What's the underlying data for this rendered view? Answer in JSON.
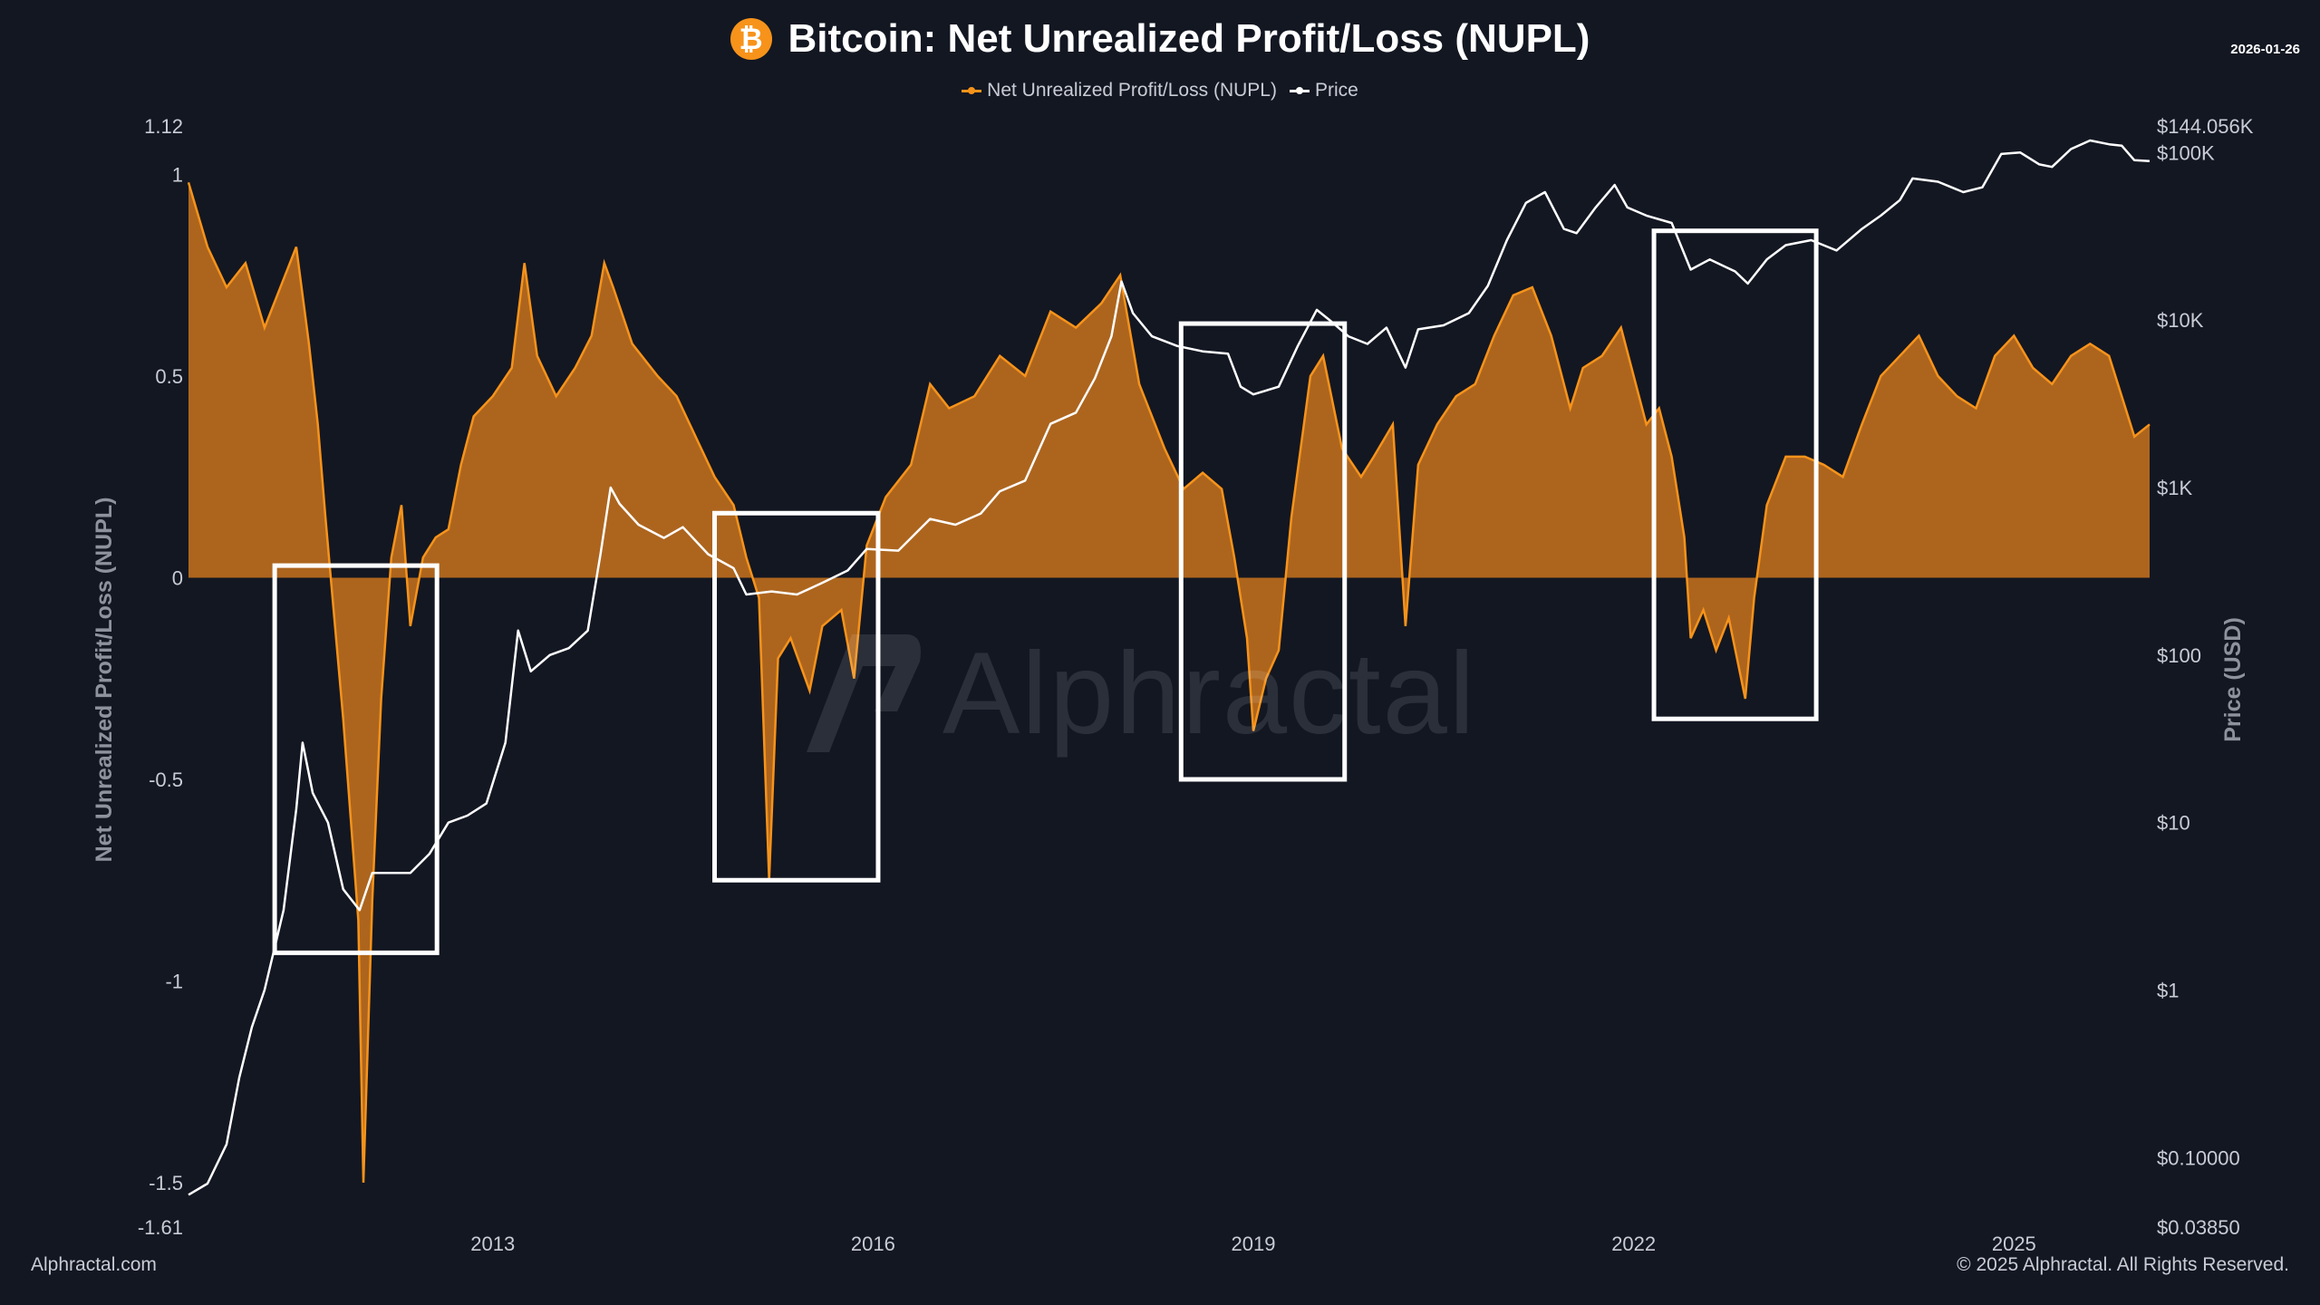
{
  "header": {
    "title": "Bitcoin: Net Unrealized Profit/Loss (NUPL)",
    "date": "2026-01-26",
    "icon": "bitcoin-icon"
  },
  "legend": [
    {
      "label": "Net Unrealized Profit/Loss (NUPL)",
      "color": "#f7931a"
    },
    {
      "label": "Price",
      "color": "#ffffff"
    }
  ],
  "footer": {
    "left": "Alphractal.com",
    "right": "© 2025 Alphractal. All Rights Reserved."
  },
  "watermark": "Alphractal",
  "chart_data": {
    "type": "area",
    "title": "Bitcoin: Net Unrealized Profit/Loss (NUPL)",
    "y_left_label": "Net Unrealized Profit/Loss (NUPL)",
    "y_right_label": "Price (USD)",
    "y_left_range": [
      -1.61,
      1.12
    ],
    "y_left_ticks": [
      "1.12",
      "1",
      "0.5",
      "0",
      "-0.5",
      "-1",
      "-1.5",
      "-1.61"
    ],
    "y_left_tick_values": [
      1.12,
      1,
      0.5,
      0,
      -0.5,
      -1,
      -1.5,
      -1.61
    ],
    "y_right_range_log": [
      0.0385,
      144056
    ],
    "y_right_ticks": [
      "$144.056K",
      "$100K",
      "$10K",
      "$1K",
      "$100",
      "$10",
      "$1",
      "$0.10000",
      "$0.03850"
    ],
    "y_right_tick_values": [
      144056,
      100000,
      10000,
      1000,
      100,
      10,
      1,
      0.1,
      0.0385
    ],
    "x_range": [
      2010.6,
      2026.07
    ],
    "x_ticks": [
      "2013",
      "2016",
      "2019",
      "2022",
      "2025"
    ],
    "x_tick_values": [
      2013,
      2016,
      2019,
      2022,
      2025
    ],
    "series": [
      {
        "name": "Net Unrealized Profit/Loss (NUPL)",
        "color": "#f7931a",
        "points": [
          [
            2010.6,
            0.98
          ],
          [
            2010.75,
            0.82
          ],
          [
            2010.9,
            0.72
          ],
          [
            2011.05,
            0.78
          ],
          [
            2011.2,
            0.62
          ],
          [
            2011.35,
            0.74
          ],
          [
            2011.45,
            0.82
          ],
          [
            2011.55,
            0.58
          ],
          [
            2011.62,
            0.38
          ],
          [
            2011.68,
            0.15
          ],
          [
            2011.75,
            -0.1
          ],
          [
            2011.82,
            -0.35
          ],
          [
            2011.88,
            -0.6
          ],
          [
            2011.94,
            -0.85
          ],
          [
            2011.98,
            -1.5
          ],
          [
            2012.05,
            -0.8
          ],
          [
            2012.12,
            -0.3
          ],
          [
            2012.2,
            0.05
          ],
          [
            2012.28,
            0.18
          ],
          [
            2012.35,
            -0.12
          ],
          [
            2012.45,
            0.05
          ],
          [
            2012.55,
            0.1
          ],
          [
            2012.65,
            0.12
          ],
          [
            2012.75,
            0.28
          ],
          [
            2012.85,
            0.4
          ],
          [
            2013.0,
            0.45
          ],
          [
            2013.15,
            0.52
          ],
          [
            2013.25,
            0.78
          ],
          [
            2013.35,
            0.55
          ],
          [
            2013.5,
            0.45
          ],
          [
            2013.65,
            0.52
          ],
          [
            2013.78,
            0.6
          ],
          [
            2013.88,
            0.78
          ],
          [
            2013.95,
            0.72
          ],
          [
            2014.1,
            0.58
          ],
          [
            2014.3,
            0.5
          ],
          [
            2014.45,
            0.45
          ],
          [
            2014.6,
            0.35
          ],
          [
            2014.75,
            0.25
          ],
          [
            2014.9,
            0.18
          ],
          [
            2015.0,
            0.05
          ],
          [
            2015.1,
            -0.05
          ],
          [
            2015.18,
            -0.75
          ],
          [
            2015.25,
            -0.2
          ],
          [
            2015.35,
            -0.15
          ],
          [
            2015.5,
            -0.28
          ],
          [
            2015.6,
            -0.12
          ],
          [
            2015.75,
            -0.08
          ],
          [
            2015.85,
            -0.25
          ],
          [
            2015.95,
            0.08
          ],
          [
            2016.1,
            0.2
          ],
          [
            2016.3,
            0.28
          ],
          [
            2016.45,
            0.48
          ],
          [
            2016.6,
            0.42
          ],
          [
            2016.8,
            0.45
          ],
          [
            2017.0,
            0.55
          ],
          [
            2017.2,
            0.5
          ],
          [
            2017.4,
            0.66
          ],
          [
            2017.6,
            0.62
          ],
          [
            2017.8,
            0.68
          ],
          [
            2017.95,
            0.75
          ],
          [
            2018.1,
            0.48
          ],
          [
            2018.3,
            0.32
          ],
          [
            2018.45,
            0.22
          ],
          [
            2018.6,
            0.26
          ],
          [
            2018.75,
            0.22
          ],
          [
            2018.85,
            0.05
          ],
          [
            2018.95,
            -0.15
          ],
          [
            2019.0,
            -0.38
          ],
          [
            2019.1,
            -0.25
          ],
          [
            2019.2,
            -0.18
          ],
          [
            2019.3,
            0.15
          ],
          [
            2019.45,
            0.5
          ],
          [
            2019.55,
            0.55
          ],
          [
            2019.7,
            0.32
          ],
          [
            2019.85,
            0.25
          ],
          [
            2019.95,
            0.3
          ],
          [
            2020.1,
            0.38
          ],
          [
            2020.2,
            -0.12
          ],
          [
            2020.3,
            0.28
          ],
          [
            2020.45,
            0.38
          ],
          [
            2020.6,
            0.45
          ],
          [
            2020.75,
            0.48
          ],
          [
            2020.9,
            0.6
          ],
          [
            2021.05,
            0.7
          ],
          [
            2021.2,
            0.72
          ],
          [
            2021.35,
            0.6
          ],
          [
            2021.5,
            0.42
          ],
          [
            2021.6,
            0.52
          ],
          [
            2021.75,
            0.55
          ],
          [
            2021.9,
            0.62
          ],
          [
            2022.0,
            0.5
          ],
          [
            2022.1,
            0.38
          ],
          [
            2022.2,
            0.42
          ],
          [
            2022.3,
            0.3
          ],
          [
            2022.4,
            0.1
          ],
          [
            2022.45,
            -0.15
          ],
          [
            2022.55,
            -0.08
          ],
          [
            2022.65,
            -0.18
          ],
          [
            2022.75,
            -0.1
          ],
          [
            2022.88,
            -0.3
          ],
          [
            2022.95,
            -0.05
          ],
          [
            2023.05,
            0.18
          ],
          [
            2023.2,
            0.3
          ],
          [
            2023.35,
            0.3
          ],
          [
            2023.5,
            0.28
          ],
          [
            2023.65,
            0.25
          ],
          [
            2023.8,
            0.38
          ],
          [
            2023.95,
            0.5
          ],
          [
            2024.1,
            0.55
          ],
          [
            2024.25,
            0.6
          ],
          [
            2024.4,
            0.5
          ],
          [
            2024.55,
            0.45
          ],
          [
            2024.7,
            0.42
          ],
          [
            2024.85,
            0.55
          ],
          [
            2025.0,
            0.6
          ],
          [
            2025.15,
            0.52
          ],
          [
            2025.3,
            0.48
          ],
          [
            2025.45,
            0.55
          ],
          [
            2025.6,
            0.58
          ],
          [
            2025.75,
            0.55
          ],
          [
            2025.88,
            0.42
          ],
          [
            2025.95,
            0.35
          ],
          [
            2026.07,
            0.38
          ]
        ]
      },
      {
        "name": "Price",
        "color": "#ffffff",
        "points": [
          [
            2010.6,
            0.06
          ],
          [
            2010.75,
            0.07
          ],
          [
            2010.9,
            0.12
          ],
          [
            2011.0,
            0.3
          ],
          [
            2011.1,
            0.6
          ],
          [
            2011.2,
            1.0
          ],
          [
            2011.35,
            3
          ],
          [
            2011.45,
            12
          ],
          [
            2011.5,
            30
          ],
          [
            2011.58,
            15
          ],
          [
            2011.7,
            10
          ],
          [
            2011.82,
            4
          ],
          [
            2011.95,
            3
          ],
          [
            2012.05,
            5
          ],
          [
            2012.2,
            5
          ],
          [
            2012.35,
            5
          ],
          [
            2012.5,
            6.5
          ],
          [
            2012.65,
            10
          ],
          [
            2012.8,
            11
          ],
          [
            2012.95,
            13
          ],
          [
            2013.1,
            30
          ],
          [
            2013.2,
            140
          ],
          [
            2013.3,
            80
          ],
          [
            2013.45,
            100
          ],
          [
            2013.6,
            110
          ],
          [
            2013.75,
            140
          ],
          [
            2013.85,
            400
          ],
          [
            2013.93,
            1000
          ],
          [
            2014.0,
            800
          ],
          [
            2014.15,
            600
          ],
          [
            2014.35,
            500
          ],
          [
            2014.5,
            580
          ],
          [
            2014.7,
            400
          ],
          [
            2014.9,
            330
          ],
          [
            2015.0,
            230
          ],
          [
            2015.2,
            240
          ],
          [
            2015.4,
            230
          ],
          [
            2015.6,
            270
          ],
          [
            2015.8,
            320
          ],
          [
            2015.95,
            430
          ],
          [
            2016.2,
            420
          ],
          [
            2016.45,
            650
          ],
          [
            2016.65,
            600
          ],
          [
            2016.85,
            700
          ],
          [
            2017.0,
            950
          ],
          [
            2017.2,
            1100
          ],
          [
            2017.4,
            2400
          ],
          [
            2017.6,
            2800
          ],
          [
            2017.75,
            4500
          ],
          [
            2017.88,
            8000
          ],
          [
            2017.96,
            17000
          ],
          [
            2018.05,
            11000
          ],
          [
            2018.2,
            8000
          ],
          [
            2018.4,
            7000
          ],
          [
            2018.6,
            6500
          ],
          [
            2018.8,
            6300
          ],
          [
            2018.9,
            4000
          ],
          [
            2019.0,
            3600
          ],
          [
            2019.2,
            4000
          ],
          [
            2019.35,
            7000
          ],
          [
            2019.5,
            11500
          ],
          [
            2019.6,
            10000
          ],
          [
            2019.75,
            8000
          ],
          [
            2019.9,
            7200
          ],
          [
            2020.05,
            9000
          ],
          [
            2020.2,
            5200
          ],
          [
            2020.3,
            8800
          ],
          [
            2020.5,
            9300
          ],
          [
            2020.7,
            11000
          ],
          [
            2020.85,
            16000
          ],
          [
            2021.0,
            30000
          ],
          [
            2021.15,
            50000
          ],
          [
            2021.3,
            58000
          ],
          [
            2021.45,
            35000
          ],
          [
            2021.55,
            33000
          ],
          [
            2021.7,
            47000
          ],
          [
            2021.85,
            64000
          ],
          [
            2021.95,
            47000
          ],
          [
            2022.1,
            42000
          ],
          [
            2022.3,
            38000
          ],
          [
            2022.45,
            20000
          ],
          [
            2022.6,
            23000
          ],
          [
            2022.8,
            19500
          ],
          [
            2022.9,
            16500
          ],
          [
            2023.05,
            23000
          ],
          [
            2023.2,
            28000
          ],
          [
            2023.4,
            30000
          ],
          [
            2023.6,
            26000
          ],
          [
            2023.8,
            35000
          ],
          [
            2023.95,
            42000
          ],
          [
            2024.1,
            52000
          ],
          [
            2024.2,
            70000
          ],
          [
            2024.4,
            67000
          ],
          [
            2024.6,
            58000
          ],
          [
            2024.75,
            62000
          ],
          [
            2024.9,
            98000
          ],
          [
            2025.05,
            100000
          ],
          [
            2025.2,
            85000
          ],
          [
            2025.3,
            82000
          ],
          [
            2025.45,
            105000
          ],
          [
            2025.6,
            118000
          ],
          [
            2025.75,
            112000
          ],
          [
            2025.85,
            110000
          ],
          [
            2025.95,
            90000
          ],
          [
            2026.07,
            89000
          ]
        ]
      }
    ],
    "highlight_boxes": [
      {
        "x_start": 2011.28,
        "x_end": 2012.56,
        "y_top": 0.03,
        "y_bottom": -0.93
      },
      {
        "x_start": 2014.75,
        "x_end": 2016.04,
        "y_top": 0.16,
        "y_bottom": -0.75
      },
      {
        "x_start": 2018.43,
        "x_end": 2019.72,
        "y_top": 0.63,
        "y_bottom": -0.5
      },
      {
        "x_start": 2022.16,
        "x_end": 2023.44,
        "y_top": 0.86,
        "y_bottom": -0.35
      }
    ]
  }
}
